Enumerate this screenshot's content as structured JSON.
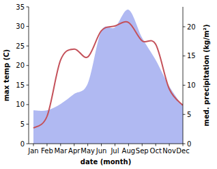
{
  "chart_data": {
    "type": "line",
    "categories": [
      "Jan",
      "Feb",
      "Mar",
      "Apr",
      "May",
      "Jun",
      "Jul",
      "Aug",
      "Sep",
      "Oct",
      "Nov",
      "Dec"
    ],
    "x_label": "date (month)",
    "y_label": "max temp (C)",
    "y2_label": "med. precipitation (kg/m²)",
    "ylim": [
      0,
      35
    ],
    "yticks": [
      0,
      5,
      10,
      15,
      20,
      25,
      30,
      35
    ],
    "y2lim": [
      0,
      23.4
    ],
    "y2ticks": [
      0,
      5,
      10,
      15,
      20
    ],
    "series": [
      {
        "name": "precipitation",
        "type": "area",
        "axis": "y2",
        "color": "#b0b9f2",
        "values": [
          5.7,
          5.7,
          6.8,
          8.5,
          10.3,
          19.3,
          19.9,
          22.9,
          18.1,
          14.3,
          9.8,
          6.4
        ]
      },
      {
        "name": "max temp",
        "type": "line",
        "color": "#c4515a",
        "values": [
          4.0,
          7.0,
          21.4,
          24.2,
          22.2,
          28.9,
          30.1,
          31.0,
          26.3,
          25.4,
          14.0,
          9.8
        ]
      }
    ]
  }
}
